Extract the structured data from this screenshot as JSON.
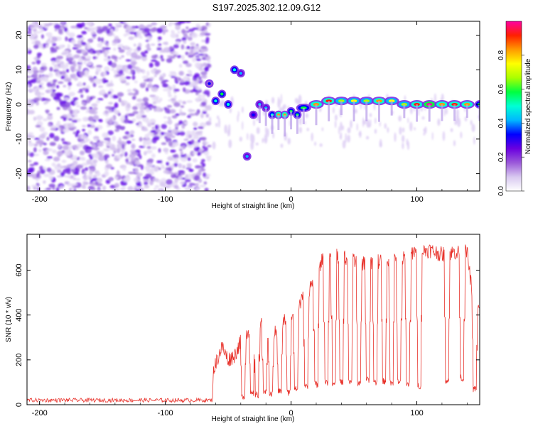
{
  "figure": {
    "title": "S197.2025.302.12.09.G12"
  },
  "colors": {
    "snr_line": "#e8322b",
    "axis": "#000000",
    "background": "#ffffff"
  },
  "chart_data": [
    {
      "type": "heatmap",
      "name": "spectrogram",
      "xlabel": "Height of straight line (km)",
      "ylabel": "Frequency (Hz)",
      "xlim": [
        -210,
        150
      ],
      "ylim": [
        -25,
        24
      ],
      "x_ticks": [
        -200,
        -100,
        0,
        100
      ],
      "y_ticks": [
        -20,
        -10,
        0,
        10,
        20
      ],
      "noise_region_x": [
        -210,
        -68
      ],
      "signal_track": {
        "x": [
          -65,
          -60,
          -55,
          -50,
          -45,
          -40,
          -35,
          -30,
          -25,
          -20,
          -15,
          -10,
          -5,
          0,
          5,
          10,
          20,
          30,
          40,
          50,
          60,
          70,
          80,
          90,
          100,
          110,
          120,
          130,
          140,
          150
        ],
        "freq": [
          6,
          1,
          3,
          0,
          10,
          9,
          -15,
          -3,
          0,
          -1,
          -3,
          -3,
          -3,
          -2,
          -3,
          -1,
          0,
          1,
          1,
          1,
          1,
          1,
          1,
          0,
          0,
          0,
          0,
          0,
          0,
          0
        ],
        "amplitude": [
          0.3,
          0.5,
          0.55,
          0.5,
          0.5,
          0.45,
          0.4,
          0.35,
          0.4,
          0.45,
          0.5,
          0.85,
          0.8,
          0.6,
          0.6,
          0.6,
          0.8,
          0.9,
          0.7,
          0.75,
          0.7,
          0.8,
          0.75,
          0.7,
          0.9,
          1.0,
          0.85,
          0.9,
          0.8,
          0.6
        ]
      },
      "colorbar": {
        "label": "Normalized spectral amplitude",
        "range": [
          0,
          1
        ],
        "ticks": [
          "0.0",
          "0.2",
          "0.4",
          "0.6",
          "0.8"
        ],
        "tick_values": [
          0,
          0.2,
          0.4,
          0.6,
          0.8
        ],
        "colors": [
          "#ffffff",
          "#d8c8f0",
          "#9b59d9",
          "#6a00e0",
          "#0000ff",
          "#00b7ff",
          "#00ffd5",
          "#00ff40",
          "#aaff00",
          "#ffff00",
          "#ff9a00",
          "#ff2000",
          "#ff00a0"
        ]
      }
    },
    {
      "type": "line",
      "name": "snr",
      "xlabel": "Height of straight line (km)",
      "ylabel": "SNR (10 * v/v)",
      "xlim": [
        -210,
        150
      ],
      "ylim": [
        0,
        760
      ],
      "x_ticks": [
        -200,
        -100,
        0,
        100
      ],
      "y_ticks": [
        0,
        200,
        400,
        600
      ],
      "series": [
        {
          "name": "SNR",
          "noise_floor_range": [
            -210,
            -62
          ],
          "noise_floor_value": 20,
          "envelope_x": [
            -62,
            -55,
            -50,
            -45,
            -40,
            -35,
            -30,
            -25,
            -20,
            -15,
            -10,
            -5,
            0,
            5,
            10,
            15,
            20,
            25,
            30,
            40,
            50,
            60,
            70,
            80,
            90,
            100,
            110,
            120,
            130,
            140,
            145,
            150
          ],
          "envelope_top": [
            150,
            260,
            200,
            220,
            280,
            320,
            360,
            370,
            330,
            300,
            340,
            380,
            400,
            430,
            480,
            520,
            580,
            650,
            660,
            660,
            640,
            630,
            640,
            650,
            650,
            680,
            690,
            670,
            680,
            680,
            450,
            420
          ],
          "envelope_base": [
            30,
            40,
            50,
            50,
            60,
            40,
            60,
            50,
            60,
            50,
            50,
            60,
            50,
            60,
            70,
            80,
            90,
            100,
            110,
            100,
            100,
            110,
            100,
            100,
            100,
            90,
            90,
            90,
            90,
            100,
            80,
            60
          ],
          "dip_x": [
            -38,
            -31,
            -27,
            -21,
            -16,
            -9,
            -2,
            4,
            12,
            20,
            28,
            34,
            40,
            47,
            54,
            61,
            67,
            74,
            80,
            86,
            93,
            102,
            124,
            136,
            146
          ],
          "dip_value": [
            40,
            50,
            45,
            55,
            50,
            60,
            55,
            70,
            80,
            90,
            100,
            95,
            100,
            105,
            100,
            110,
            100,
            105,
            100,
            100,
            95,
            85,
            110,
            120,
            70
          ]
        }
      ]
    }
  ]
}
